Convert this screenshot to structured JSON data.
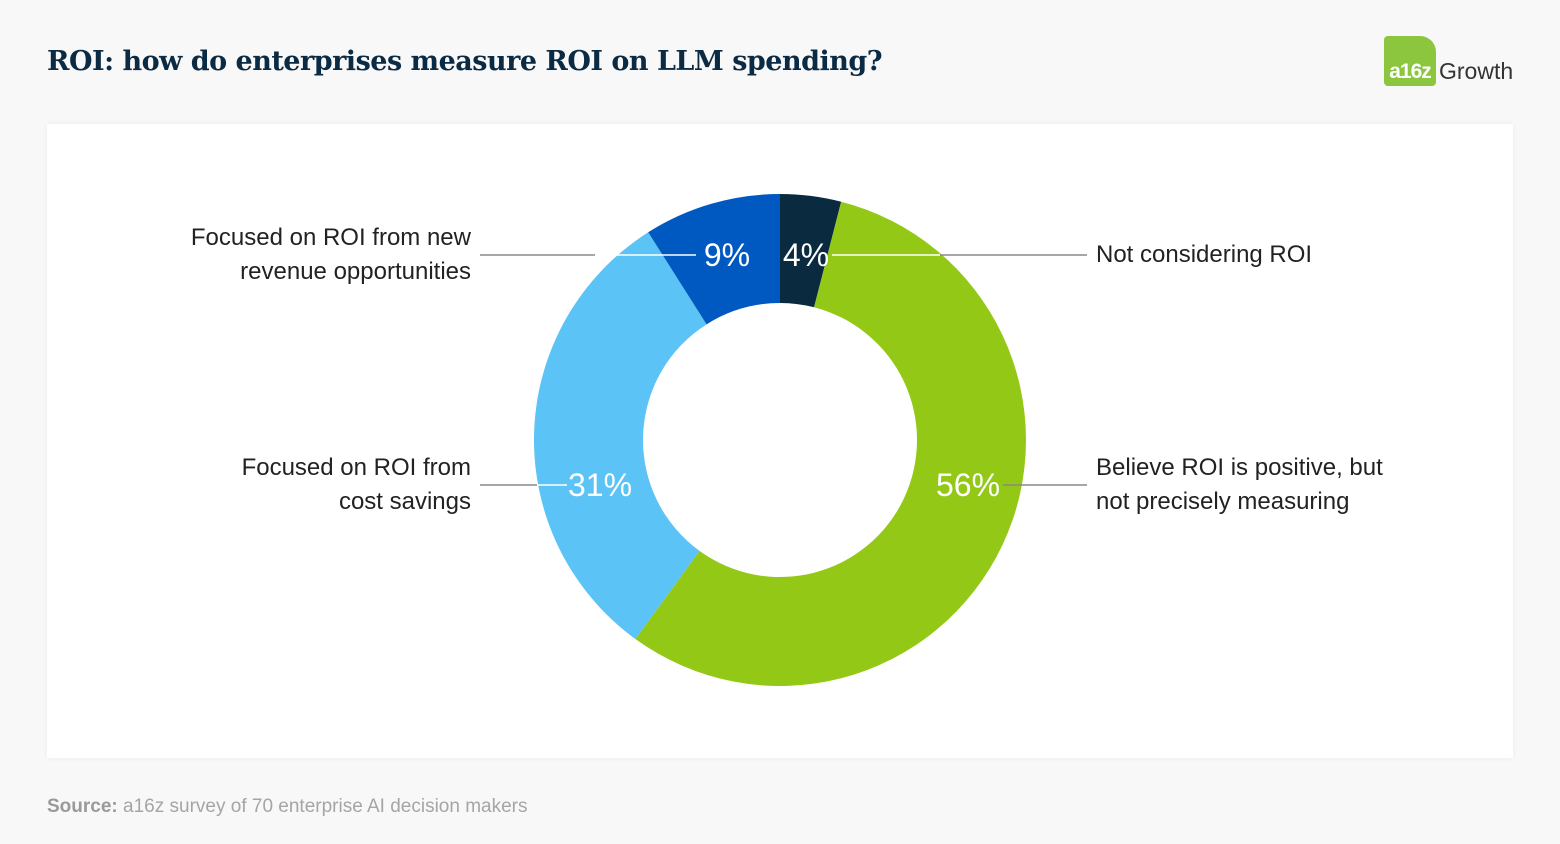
{
  "title": "ROI: how do enterprises measure ROI on LLM spending?",
  "logo": {
    "mark": "a16z",
    "word": "Growth",
    "color": "#8cc63f"
  },
  "chart_data": {
    "type": "pie",
    "donut": true,
    "title": "ROI: how do enterprises measure ROI on LLM spending?",
    "categories": [
      "Not considering ROI",
      "Believe ROI is positive, but not precisely measuring",
      "Focused on ROI from cost savings",
      "Focused on ROI from new revenue opportunities"
    ],
    "values": [
      4,
      56,
      31,
      9
    ],
    "data_labels": [
      "4%",
      "56%",
      "31%",
      "9%"
    ],
    "colors": [
      "#0a2a40",
      "#93c916",
      "#5bc3f5",
      "#0059c0"
    ],
    "label_lines": {
      "not": [
        "Not considering ROI"
      ],
      "believe": [
        "Believe ROI is positive, but",
        "not precisely measuring"
      ],
      "cost": [
        "Focused on ROI from",
        "cost savings"
      ],
      "revenue": [
        "Focused on ROI from new",
        "revenue opportunities"
      ]
    }
  },
  "source": {
    "label": "Source:",
    "text": " a16z survey of 70 enterprise AI decision makers"
  }
}
